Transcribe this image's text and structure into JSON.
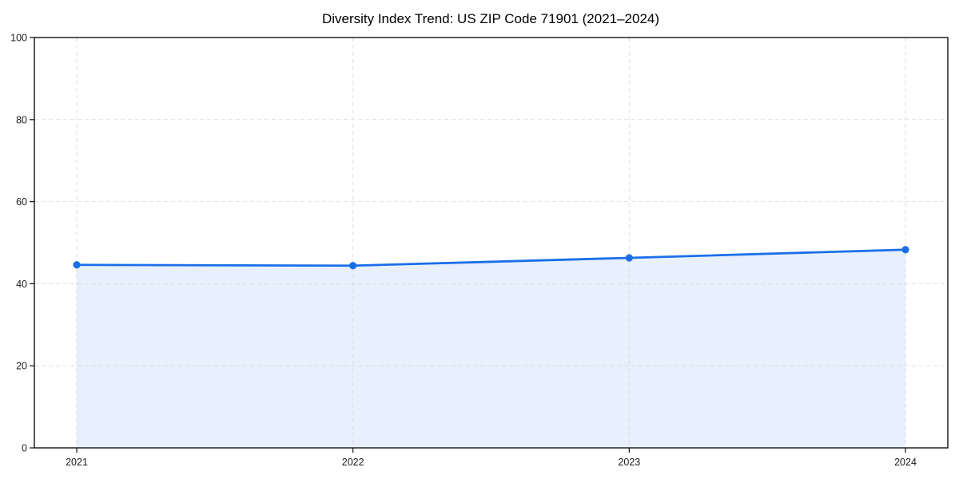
{
  "chart_data": {
    "type": "line",
    "title": "Diversity Index Trend: US ZIP Code 71901 (2021–2024)",
    "categories": [
      "2021",
      "2022",
      "2023",
      "2024"
    ],
    "series": [
      {
        "name": "Diversity Index",
        "values": [
          44.6,
          44.4,
          46.3,
          48.3
        ]
      }
    ],
    "xlabel": "",
    "ylabel": "",
    "ylim": [
      0,
      100
    ],
    "yticks": [
      0,
      20,
      40,
      60,
      80,
      100
    ],
    "grid": true,
    "grid_style": "dashed",
    "legend": "none",
    "area_fill": true,
    "marker": "circle",
    "colors": {
      "line": "#1a6fe8",
      "marker": "#1a6fe8",
      "area": "#e8f0fd",
      "grid": "#d9d9d9",
      "spine": "#111111",
      "tick_text": "#1a1a1a",
      "title_text": "#000000",
      "background": "#ffffff"
    }
  }
}
